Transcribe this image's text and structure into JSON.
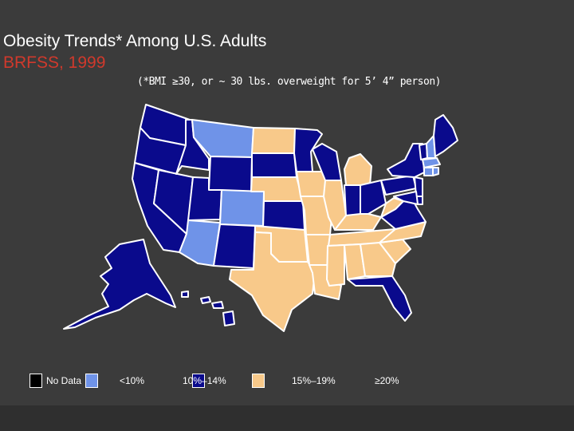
{
  "slide": {
    "title": "Obesity Trends* Among U.S. Adults",
    "subtitle": "BRFSS, 1999",
    "note": "(*BMI ≥30, or ~ 30 lbs. overweight for 5’ 4” person)"
  },
  "colors": {
    "background": "#3b3b3b",
    "no_data": "#000000",
    "lt10": "#6f93e8",
    "p10_14": "#0a0a8c",
    "p15_19": "#f8c98a",
    "border": "#ffffff",
    "title": "#ffffff",
    "subtitle": "#d0392c"
  },
  "legend": [
    {
      "label": "No Data",
      "color_key": "no_data"
    },
    {
      "label": "<10%",
      "color_key": "lt10"
    },
    {
      "label": "10%–14%",
      "color_key": "p10_14"
    },
    {
      "label": "15%–19%",
      "color_key": "p15_19"
    },
    {
      "label": "≥20%",
      "color_key": "ge20"
    }
  ],
  "states": {
    "WA": "p10_14",
    "OR": "p10_14",
    "CA": "p10_14",
    "NV": "p10_14",
    "ID": "p10_14",
    "MT": "lt10",
    "WY": "p10_14",
    "UT": "p10_14",
    "CO": "lt10",
    "AZ": "lt10",
    "NM": "p10_14",
    "ND": "p15_19",
    "SD": "p10_14",
    "NE": "p15_19",
    "KS": "p10_14",
    "OK": "p15_19",
    "TX": "p15_19",
    "MN": "p10_14",
    "IA": "p15_19",
    "MO": "p15_19",
    "AR": "p15_19",
    "LA": "p15_19",
    "WI": "p10_14",
    "IL": "p15_19",
    "MI": "p15_19",
    "IN": "p10_14",
    "OH": "p10_14",
    "KY": "p15_19",
    "TN": "p15_19",
    "MS": "p15_19",
    "AL": "p15_19",
    "GA": "p15_19",
    "FL": "p10_14",
    "SC": "p15_19",
    "NC": "p15_19",
    "VA": "p10_14",
    "WV": "p15_19",
    "PA": "p10_14",
    "NY": "p10_14",
    "VT": "p10_14",
    "NH": "lt10",
    "ME": "p10_14",
    "MA": "lt10",
    "RI": "lt10",
    "CT": "lt10",
    "NJ": "p10_14",
    "DE": "p10_14",
    "MD": "p10_14",
    "AK": "p10_14",
    "HI": "p10_14"
  }
}
